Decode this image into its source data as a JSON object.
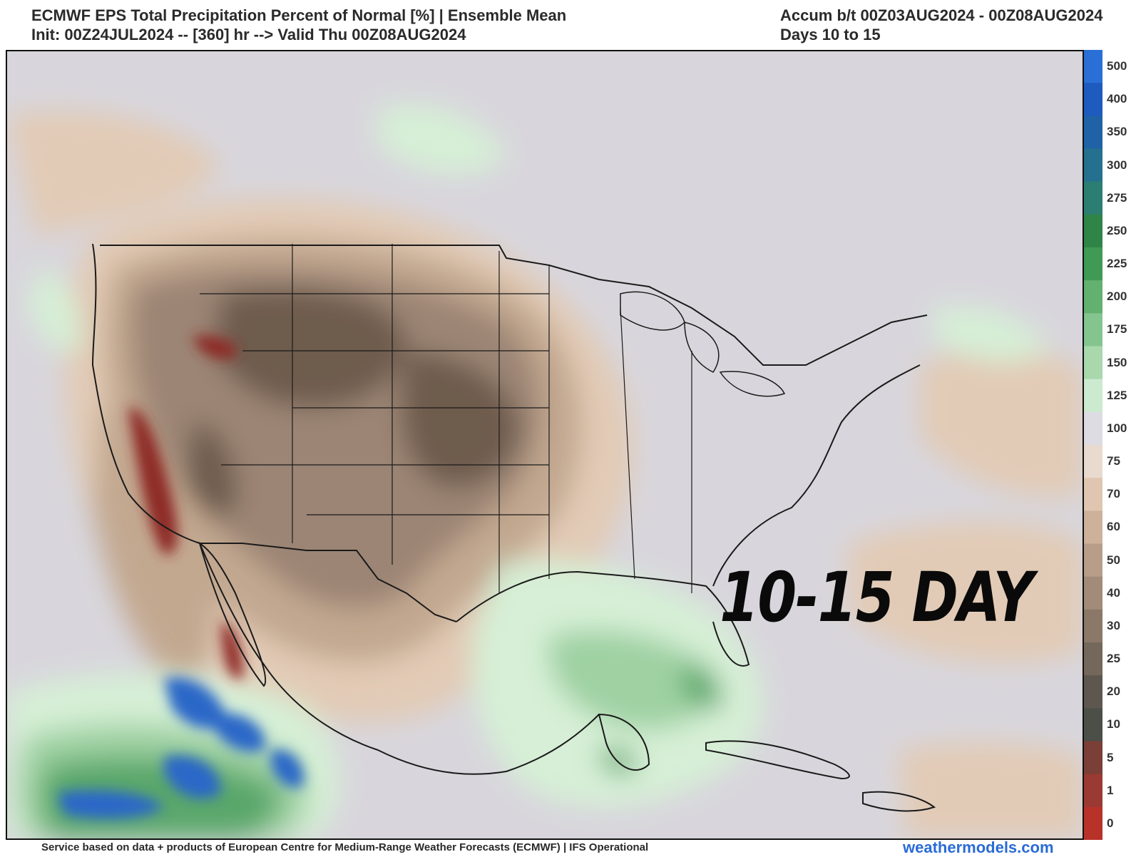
{
  "header": {
    "title_line1": "ECMWF EPS Total Precipitation Percent of Normal [%] | Ensemble Mean",
    "title_line2": "Init: 00Z24JUL2024 -- [360] hr --> Valid Thu 00Z08AUG2024",
    "accum_line1": "Accum b/t 00Z03AUG2024 - 00Z08AUG2024",
    "accum_line2": "Days 10 to 15"
  },
  "map": {
    "overlay_label": "10-15 DAY",
    "colors": {
      "very_dry": "#8e2a26",
      "dry_deep": "#6e5b4e",
      "dry_mid": "#9c8575",
      "dry_light": "#c3a890",
      "dry_tan": "#e2cbb6",
      "near_normal": "#d8d6dc",
      "wet_light": "#d6efd6",
      "wet_mid": "#9fd1a3",
      "wet_deep": "#5aa76a",
      "very_wet": "#2a67c8",
      "land_border": "#1a1a1a"
    }
  },
  "legend": {
    "ticks": [
      {
        "label": "500",
        "color": "#2a6fd6"
      },
      {
        "label": "400",
        "color": "#1d5bbf"
      },
      {
        "label": "350",
        "color": "#1f63a6"
      },
      {
        "label": "300",
        "color": "#25708f"
      },
      {
        "label": "275",
        "color": "#2c7e73"
      },
      {
        "label": "250",
        "color": "#2f8547"
      },
      {
        "label": "225",
        "color": "#3f9a53"
      },
      {
        "label": "200",
        "color": "#62b16e"
      },
      {
        "label": "175",
        "color": "#84c48f"
      },
      {
        "label": "150",
        "color": "#a8d8ac"
      },
      {
        "label": "125",
        "color": "#cbead0"
      },
      {
        "label": "100",
        "color": "#dcdce2"
      },
      {
        "label": "75",
        "color": "#e9dad0"
      },
      {
        "label": "70",
        "color": "#e0c6b0"
      },
      {
        "label": "60",
        "color": "#cdb19a"
      },
      {
        "label": "50",
        "color": "#b89e89"
      },
      {
        "label": "40",
        "color": "#a38b79"
      },
      {
        "label": "30",
        "color": "#8b7868"
      },
      {
        "label": "25",
        "color": "#74675b"
      },
      {
        "label": "20",
        "color": "#5d574f"
      },
      {
        "label": "10",
        "color": "#4a4f48"
      },
      {
        "label": "5",
        "color": "#7a3f36"
      },
      {
        "label": "1",
        "color": "#9b3a32"
      },
      {
        "label": "0",
        "color": "#b8322a"
      }
    ]
  },
  "footer": {
    "credit": "Service based on data + products of European Centre for Medium-Range Weather Forecasts (ECMWF) | IFS Operational",
    "site": "weathermodels.com"
  }
}
